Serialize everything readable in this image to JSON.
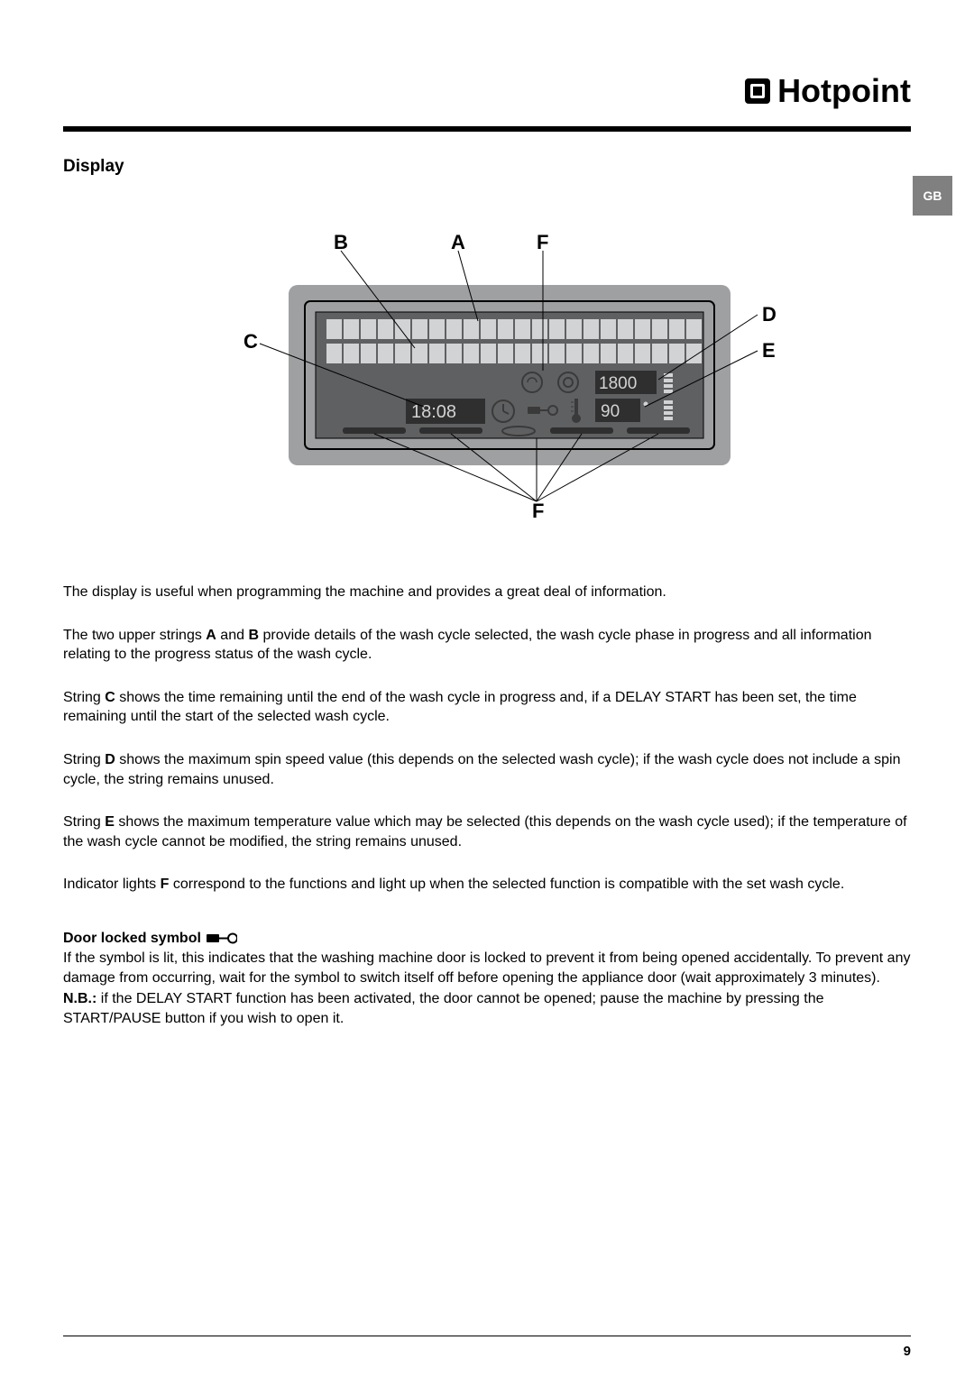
{
  "brand": "Hotpoint",
  "lang_tab": "GB",
  "section_title": "Display",
  "page_number": "9",
  "diagram": {
    "labels": {
      "A": "A",
      "B": "B",
      "C": "C",
      "D": "D",
      "E": "E",
      "F_top": "F",
      "F_bottom": "F"
    },
    "spin_value": "1800",
    "temp_value": "90",
    "time_value": "18:08",
    "colors": {
      "panel_outer": "#9fa0a2",
      "panel_inner_border": "#000000",
      "screen_bg": "#5f6062",
      "cell_fill": "#d2d3d4",
      "cell_dark": "#2f2f2f",
      "icon_dark": "#3a3a3a",
      "line": "#000000"
    }
  },
  "paragraphs": {
    "p1": "The display is useful when programming the machine and provides a great deal of information.",
    "p2_a": "The two upper strings ",
    "p2_b": "A",
    "p2_c": " and ",
    "p2_d": "B",
    "p2_e": " provide details of the wash cycle selected, the wash cycle phase in progress and all information relating to the progress status of the wash cycle.",
    "p3_a": "String ",
    "p3_b": "C",
    "p3_c": " shows the time remaining until the end of the wash cycle in progress and, if a DELAY START has been set, the time remaining until the start of the selected wash cycle.",
    "p4_a": "String ",
    "p4_b": "D",
    "p4_c": " shows the maximum spin speed value (this depends on the selected wash cycle); if the wash cycle does not include a spin cycle, the string remains unused.",
    "p5_a": "String ",
    "p5_b": "E",
    "p5_c": " shows the maximum temperature value which may be selected (this depends on the wash cycle used); if the temperature of the wash cycle cannot be modified, the string remains unused.",
    "p6_a": "Indicator lights ",
    "p6_b": "F",
    "p6_c": " correspond to the functions and light up when the selected function is compatible with the set wash cycle.",
    "door_heading": "Door locked symbol",
    "door_p1": "If the symbol is lit, this indicates that the washing machine door is locked to prevent it from being opened accidentally. To prevent any damage from occurring, wait for the symbol to switch itself off before opening the appliance door (wait approximately 3 minutes).",
    "door_nb_label": "N.B.:",
    "door_nb": " if the DELAY START function has been activated, the door cannot be opened; pause the machine by pressing the START/PAUSE button if you wish to open it."
  }
}
